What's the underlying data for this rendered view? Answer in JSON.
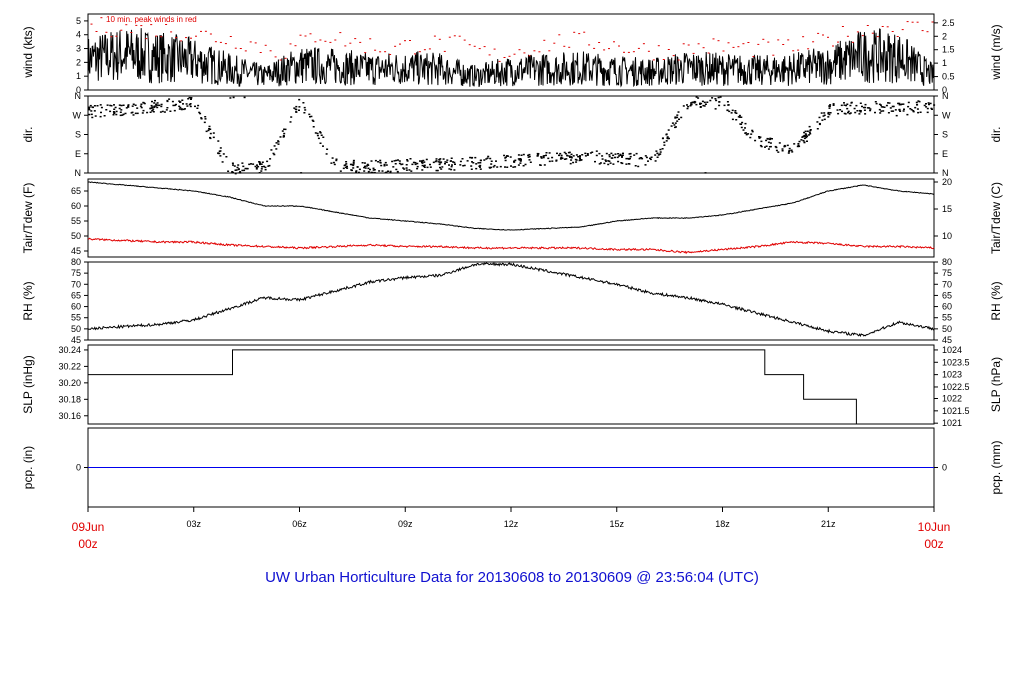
{
  "title": "UW Urban Horticulture Data for 20130608  to  20130609 @ 23:56:04  (UTC)",
  "colors": {
    "axis": "#000000",
    "peak": "#e00000",
    "dew": "#e00000",
    "pcp": "#0000ee",
    "title": "#1010d0",
    "date": "#e00000"
  },
  "x_axis": {
    "start_label_day": "09Jun",
    "start_label_hour": "00z",
    "end_label_day": "10Jun",
    "end_label_hour": "00z",
    "ticks": [
      {
        "hour": 3,
        "label": "03z"
      },
      {
        "hour": 6,
        "label": "06z"
      },
      {
        "hour": 9,
        "label": "09z"
      },
      {
        "hour": 12,
        "label": "12z"
      },
      {
        "hour": 15,
        "label": "15z"
      },
      {
        "hour": 18,
        "label": "18z"
      },
      {
        "hour": 21,
        "label": "21z"
      }
    ]
  },
  "chart_data": [
    {
      "type": "line",
      "panel": "wind",
      "ylabel_left": "wind (kts)",
      "ylabel_right": "wind (m/s)",
      "annotation": "10 min. peak winds in red",
      "ylim": [
        0,
        5.5
      ],
      "yticks_left": [
        "0",
        "1",
        "2",
        "3",
        "4",
        "5"
      ],
      "yticks_right": [
        {
          "v": 0,
          "l": "0"
        },
        {
          "v": 0.5,
          "l": "0.5"
        },
        {
          "v": 1,
          "l": "1"
        },
        {
          "v": 1.5,
          "l": "1.5"
        },
        {
          "v": 2,
          "l": "2"
        },
        {
          "v": 2.5,
          "l": "2.5"
        }
      ],
      "series": [
        {
          "x_hours": [
            0,
            1,
            2,
            3,
            4,
            5,
            6,
            7,
            8,
            9,
            10,
            11,
            12,
            13,
            14,
            15,
            16,
            17,
            18,
            19,
            20,
            21,
            22,
            23,
            24
          ],
          "values": [
            2.2,
            2.6,
            2.4,
            2.1,
            1.5,
            1.0,
            1.8,
            1.7,
            1.5,
            1.6,
            1.5,
            1.0,
            1.4,
            1.5,
            1.6,
            1.4,
            1.3,
            1.6,
            1.5,
            1.4,
            1.5,
            1.8,
            2.5,
            2.4,
            1.0
          ]
        },
        {
          "x_hours": [
            0.5,
            1.5,
            2.5,
            3.5,
            4.5,
            5.5,
            6.5,
            7.5,
            8.5,
            9.5,
            10.5,
            11.5,
            12.5,
            13.5,
            14.5,
            15.5,
            16.5,
            17.5,
            18.5,
            19.5,
            20.5,
            21.5,
            22.5,
            23.5
          ],
          "values": [
            4.6,
            4.4,
            4.3,
            3.9,
            3.5,
            2.7,
            4.1,
            3.5,
            3.0,
            3.4,
            3.3,
            2.5,
            3.1,
            3.6,
            3.5,
            3.0,
            2.8,
            3.2,
            3.1,
            3.0,
            3.3,
            4.1,
            4.6,
            4.5
          ]
        }
      ]
    },
    {
      "type": "scatter",
      "panel": "direction",
      "ylabel_left": "dir.",
      "ylabel_right": "dir.",
      "yticks": [
        "N",
        "E",
        "S",
        "W",
        "N"
      ],
      "ylim": [
        0,
        360
      ],
      "series": [
        {
          "x_hours": [
            0,
            1,
            2,
            3,
            4,
            5,
            6,
            7,
            8,
            9,
            10,
            11,
            12,
            13,
            14,
            15,
            16,
            17,
            18,
            19,
            20,
            21,
            22,
            23,
            24
          ],
          "values": [
            290,
            300,
            315,
            330,
            20,
            30,
            340,
            40,
            30,
            40,
            45,
            50,
            60,
            70,
            80,
            70,
            60,
            340,
            330,
            150,
            110,
            300,
            310,
            300,
            320
          ]
        }
      ]
    },
    {
      "type": "line",
      "panel": "temperature",
      "ylabel_left": "Tair/Tdew (F)",
      "ylabel_right": "Tair/Tdew (C)",
      "ylim": [
        43,
        69
      ],
      "yticks_left": [
        "45",
        "50",
        "55",
        "60",
        "65"
      ],
      "yticks_right": [
        {
          "v": 50,
          "l": "10"
        },
        {
          "v": 59,
          "l": "15"
        },
        {
          "v": 68,
          "l": "20"
        }
      ],
      "series": [
        {
          "x_hours": [
            0,
            1,
            2,
            3,
            4,
            5,
            6,
            7,
            8,
            9,
            10,
            11,
            12,
            13,
            14,
            15,
            16,
            17,
            18,
            19,
            20,
            21,
            22,
            23,
            24
          ],
          "values": [
            68,
            67,
            66,
            65,
            63,
            60,
            60,
            58,
            56,
            55,
            54,
            52.5,
            52,
            52.5,
            53,
            55,
            56,
            56,
            57,
            59,
            61,
            65,
            67,
            65,
            64
          ]
        },
        {
          "x_hours": [
            0,
            1,
            2,
            3,
            4,
            5,
            6,
            7,
            8,
            9,
            10,
            11,
            12,
            13,
            14,
            15,
            16,
            17,
            18,
            19,
            20,
            21,
            22,
            23,
            24
          ],
          "values": [
            49,
            48.5,
            48,
            48,
            47,
            46.5,
            46,
            46.5,
            47,
            46.5,
            46.5,
            46,
            46,
            46,
            46,
            45.5,
            45.5,
            44.5,
            45.5,
            46.5,
            48,
            47.5,
            46.5,
            46.5,
            46
          ]
        }
      ]
    },
    {
      "type": "line",
      "panel": "humidity",
      "ylabel_left": "RH (%)",
      "ylabel_right": "RH (%)",
      "ylim": [
        45,
        80
      ],
      "yticks_left": [
        "45",
        "50",
        "55",
        "60",
        "65",
        "70",
        "75",
        "80"
      ],
      "yticks_right": [
        {
          "v": 45,
          "l": "45"
        },
        {
          "v": 50,
          "l": "50"
        },
        {
          "v": 55,
          "l": "55"
        },
        {
          "v": 60,
          "l": "60"
        },
        {
          "v": 65,
          "l": "65"
        },
        {
          "v": 70,
          "l": "70"
        },
        {
          "v": 75,
          "l": "75"
        },
        {
          "v": 80,
          "l": "80"
        }
      ],
      "series": [
        {
          "x_hours": [
            0,
            1,
            2,
            3,
            4,
            5,
            6,
            7,
            8,
            9,
            10,
            11,
            12,
            13,
            14,
            15,
            16,
            17,
            18,
            19,
            20,
            21,
            22,
            23,
            24
          ],
          "values": [
            50,
            51,
            52,
            54,
            59,
            64,
            63,
            67,
            71,
            73,
            74,
            79,
            79,
            76,
            73,
            70,
            66,
            64,
            61,
            57,
            53,
            49,
            47,
            53,
            50
          ]
        }
      ]
    },
    {
      "type": "line",
      "panel": "pressure",
      "ylabel_left": "SLP (inHg)",
      "ylabel_right": "SLP (hPa)",
      "ylim": [
        30.15,
        30.246
      ],
      "yticks_left": [
        "30.16",
        "30.18",
        "30.20",
        "30.22",
        "30.24"
      ],
      "yticks_right": [
        {
          "v": 30.151,
          "l": "1021"
        },
        {
          "v": 30.166,
          "l": "1021.5"
        },
        {
          "v": 30.181,
          "l": "1022"
        },
        {
          "v": 30.195,
          "l": "1022.5"
        },
        {
          "v": 30.21,
          "l": "1023"
        },
        {
          "v": 30.225,
          "l": "1023.5"
        },
        {
          "v": 30.24,
          "l": "1024"
        }
      ],
      "series": [
        {
          "x_hours": [
            0,
            4.1,
            4.1,
            19.2,
            19.2,
            20.3,
            20.3,
            21.8,
            21.8,
            24
          ],
          "values": [
            30.21,
            30.21,
            30.24,
            30.24,
            30.21,
            30.21,
            30.18,
            30.18,
            30.15,
            30.15
          ]
        }
      ]
    },
    {
      "type": "line",
      "panel": "precipitation",
      "ylabel_left": "pcp. (in)",
      "ylabel_right": "pcp. (mm)",
      "ylim": [
        -1,
        1
      ],
      "yticks_left": [
        "0"
      ],
      "yticks_right": [
        {
          "v": 0,
          "l": "0"
        }
      ],
      "series": [
        {
          "x_hours": [
            0,
            24
          ],
          "values": [
            0,
            0
          ]
        }
      ]
    }
  ]
}
